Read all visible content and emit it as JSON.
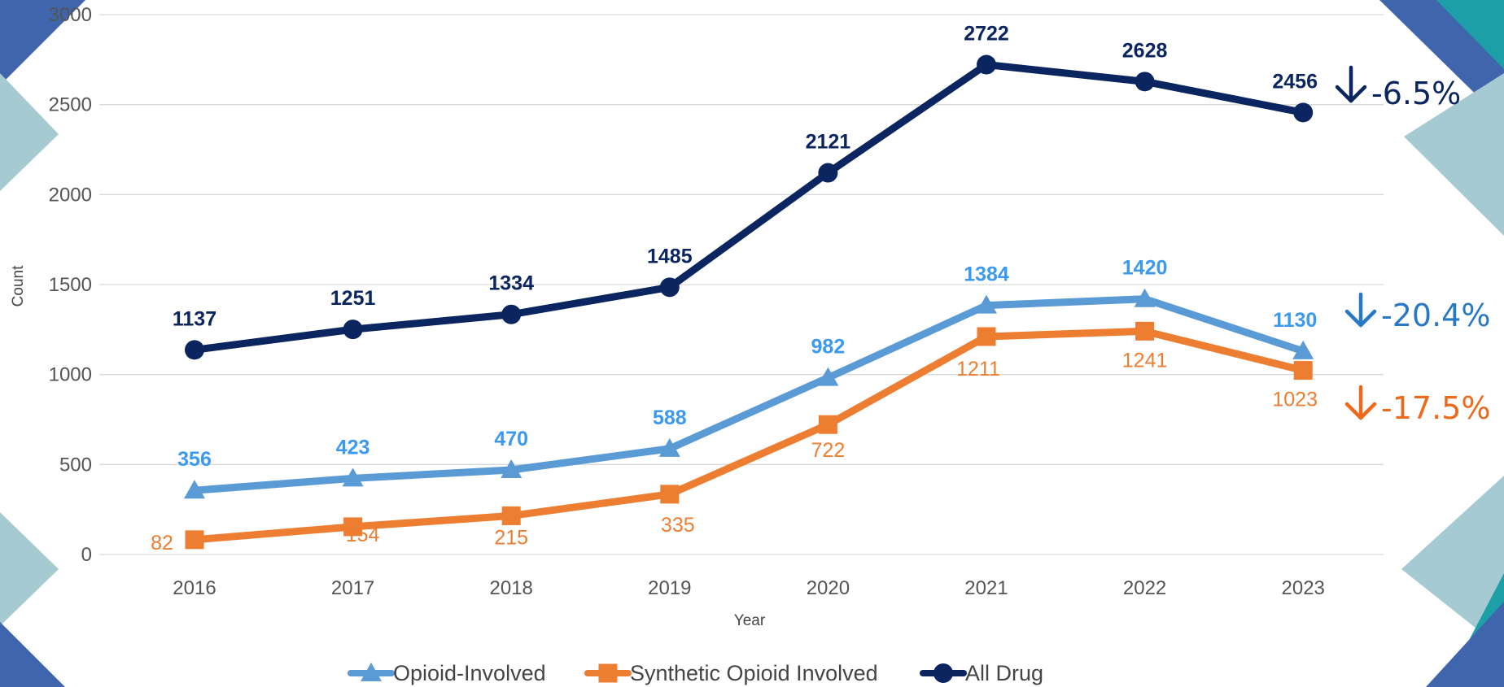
{
  "colors": {
    "all_drug": "#0a2560",
    "opioid": "#5b9bd5",
    "synthetic": "#ed7d31",
    "opioid_label": "#3b99f0",
    "pct_all": "#0a2560",
    "pct_opioid": "#2878c8",
    "pct_synthetic": "#ed6a1c",
    "grid": "#d9d9d9",
    "deco_dark": "#3f66ad",
    "deco_light": "#a6cad2",
    "deco_teal": "#1c9fa6"
  },
  "chart_data": {
    "type": "line",
    "xlabel": "Year",
    "ylabel": "Count",
    "ylim": [
      0,
      3000
    ],
    "yticks": [
      "0",
      "500",
      "1000",
      "1500",
      "2000",
      "2500",
      "3000"
    ],
    "categories": [
      "2016",
      "2017",
      "2018",
      "2019",
      "2020",
      "2021",
      "2022",
      "2023"
    ],
    "grid": true,
    "legend_position": "bottom",
    "series": [
      {
        "name": "Opioid-Involved",
        "marker": "triangle",
        "values": [
          356,
          423,
          470,
          588,
          982,
          1384,
          1420,
          1130
        ],
        "labels": [
          "356",
          "423",
          "470",
          "588",
          "982",
          "1384",
          "1420",
          "1130"
        ]
      },
      {
        "name": "Synthetic Opioid Involved",
        "marker": "square",
        "values": [
          82,
          154,
          215,
          335,
          722,
          1211,
          1241,
          1023
        ],
        "labels": [
          "82",
          "154",
          "215",
          "335",
          "722",
          "1211",
          "1241",
          "1023"
        ]
      },
      {
        "name": "All Drug",
        "marker": "circle",
        "values": [
          1137,
          1251,
          1334,
          1485,
          2121,
          2722,
          2628,
          2456
        ],
        "labels": [
          "1137",
          "1251",
          "1334",
          "1485",
          "2121",
          "2722",
          "2628",
          "2456"
        ]
      }
    ],
    "annotations": {
      "all_drug_change": "-6.5%",
      "opioid_change": "-20.4%",
      "synthetic_change": "-17.5%",
      "arrow_icon": "down-arrow-icon"
    }
  }
}
